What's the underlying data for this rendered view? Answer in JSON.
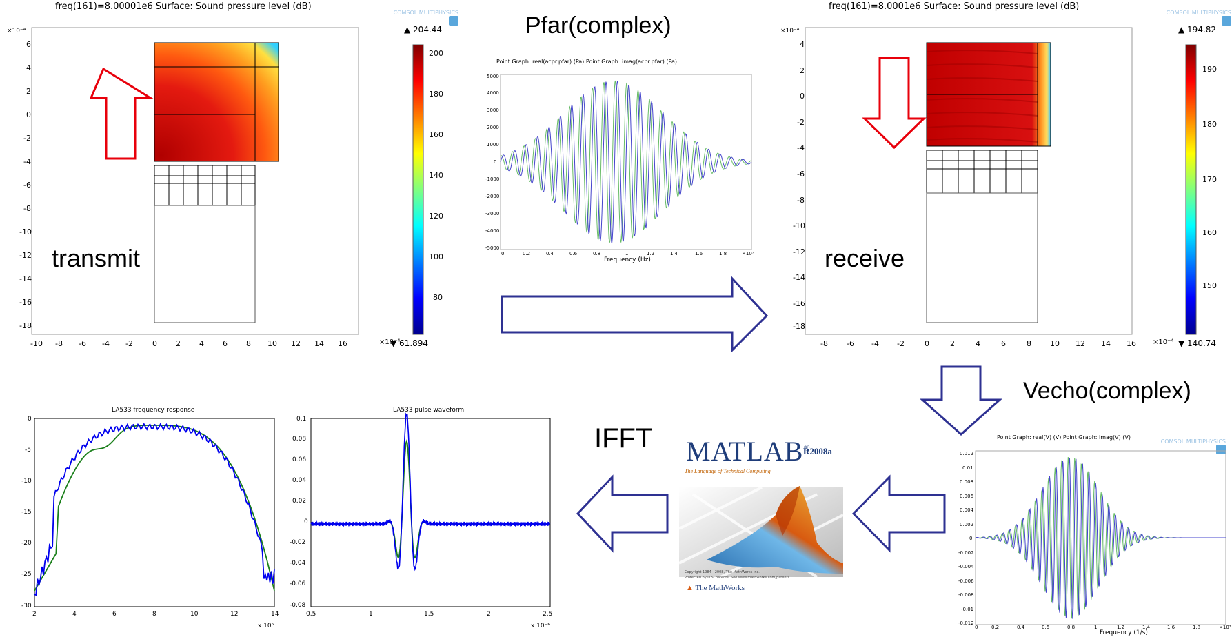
{
  "left_panel": {
    "header": "freq(161)=8.00001e6   Surface: Sound pressure level (dB)",
    "axis_exp": "×10⁻⁴",
    "x_ticks": [
      "-10",
      "-8",
      "-6",
      "-4",
      "-2",
      "0",
      "2",
      "4",
      "6",
      "8",
      "10",
      "12",
      "14",
      "16"
    ],
    "y_ticks": [
      "6",
      "4",
      "2",
      "0",
      "-2",
      "-4",
      "-6",
      "-8",
      "-10",
      "-12",
      "-14",
      "-16",
      "-18"
    ],
    "x_exp": "×10⁻⁴",
    "colorbar_max": "▲ 204.44",
    "colorbar_min": "▼ 61.894",
    "colorbar_ticks": [
      "200",
      "180",
      "160",
      "140",
      "120",
      "100",
      "80"
    ],
    "label": "transmit"
  },
  "right_panel": {
    "header": "freq(161)=8.0001e6   Surface: Sound pressure level (dB)",
    "axis_exp": "×10⁻⁴",
    "x_ticks": [
      "-8",
      "-6",
      "-4",
      "-2",
      "0",
      "2",
      "4",
      "6",
      "8",
      "10",
      "12",
      "14",
      "16"
    ],
    "y_ticks": [
      "4",
      "2",
      "0",
      "-2",
      "-4",
      "-6",
      "-8",
      "-10",
      "-12",
      "-14",
      "-16",
      "-18"
    ],
    "x_exp": "×10⁻⁴",
    "colorbar_max": "▲ 194.82",
    "colorbar_min": "▼ 140.74",
    "colorbar_ticks": [
      "190",
      "180",
      "170",
      "160",
      "150"
    ],
    "label": "receive"
  },
  "logo_text": "COMSOL MULTIPHYSICS",
  "pfar": {
    "title": "Pfar(complex)",
    "graph_title": "Point Graph: real(acpr.pfar) (Pa)  Point Graph: imag(acpr.pfar) (Pa)",
    "xlabel": "Frequency (Hz)",
    "y_ticks": [
      "5000",
      "4000",
      "3000",
      "2000",
      "1000",
      "0",
      "-1000",
      "-2000",
      "-3000",
      "-4000",
      "-5000"
    ],
    "x_ticks": [
      "0",
      "0.2",
      "0.4",
      "0.6",
      "0.8",
      "1",
      "1.2",
      "1.4",
      "1.6",
      "1.8"
    ],
    "x_exp": "×10⁷"
  },
  "vecho": {
    "title": "Vecho(complex)",
    "graph_title": "Point Graph: real(V) (V)  Point Graph: imag(V) (V)",
    "xlabel": "Frequency (1/s)",
    "y_ticks": [
      "0.012",
      "0.01",
      "0.008",
      "0.006",
      "0.004",
      "0.002",
      "0",
      "-0.002",
      "-0.004",
      "-0.006",
      "-0.008",
      "-0.01",
      "-0.012"
    ],
    "x_ticks": [
      "0",
      "0.2",
      "0.4",
      "0.6",
      "0.8",
      "1",
      "1.2",
      "1.4",
      "1.6",
      "1.8"
    ],
    "x_exp": "×10⁷"
  },
  "ifft_label": "IFFT",
  "freq_plot": {
    "title": "LA533 frequency response",
    "y_ticks": [
      "0",
      "-5",
      "-10",
      "-15",
      "-20",
      "-25",
      "-30"
    ],
    "x_ticks": [
      "2",
      "4",
      "6",
      "8",
      "10",
      "12",
      "14"
    ],
    "x_exp": "x 10⁶"
  },
  "pulse_plot": {
    "title": "LA533 pulse waveform",
    "y_ticks": [
      "0.1",
      "0.08",
      "0.06",
      "0.04",
      "0.02",
      "0",
      "-0.02",
      "-0.04",
      "-0.06",
      "-0.08"
    ],
    "x_ticks": [
      "0.5",
      "1",
      "1.5",
      "2",
      "2.5"
    ],
    "x_exp": "x 10⁻⁶"
  },
  "matlab": {
    "name": "MATLAB",
    "reg": "®",
    "version": "R2008a",
    "tagline": "The Language of Technical Computing",
    "copyright": "Copyright 1984 - 2008, The MathWorks Inc.",
    "patents": "Protected by U.S. patents. See www.mathworks.com/patents",
    "company": "The MathWorks"
  },
  "colors": {
    "red_arrow": "#e8000b",
    "blue_arrow": "#2e3192",
    "series_real": "#4444cc",
    "series_imag": "#66bb66",
    "matlab_blue": "#1f3d7a"
  }
}
